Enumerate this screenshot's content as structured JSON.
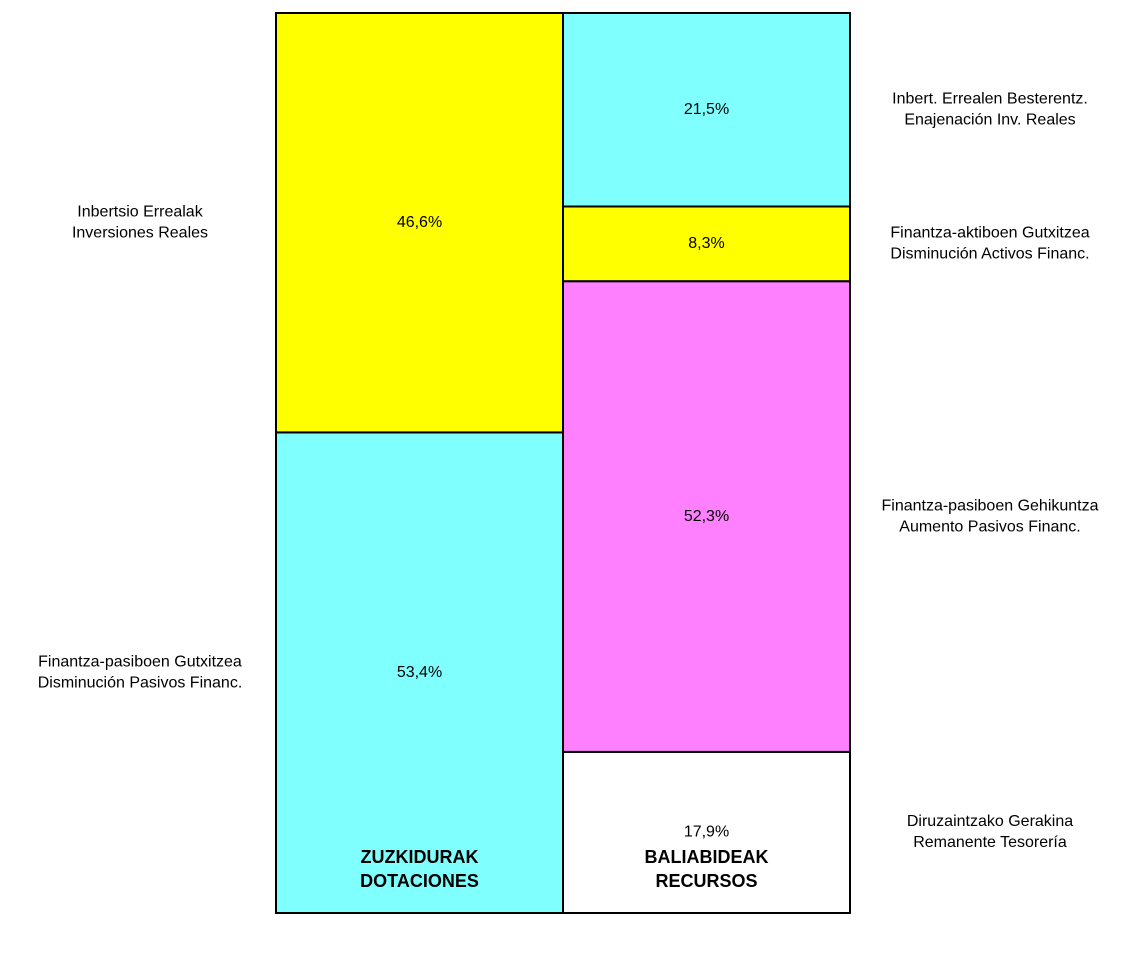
{
  "chart_data": {
    "type": "bar",
    "stacked": true,
    "categories": [
      [
        "ZUZKIDURAK",
        "DOTACIONES"
      ],
      [
        "BALIABIDEAK",
        "RECURSOS"
      ]
    ],
    "ylim": [
      0,
      100
    ],
    "series": [
      {
        "name": [
          "Finantza-pasiboen Gutxitzea",
          "Disminución Pasivos Financ."
        ],
        "color": "#80ffff",
        "values": [
          53.4,
          null
        ],
        "value_labels": [
          "53,4%",
          null
        ]
      },
      {
        "name": [
          "Inbertsio Errealak",
          "Inversiones Reales"
        ],
        "color": "#ffff00",
        "values": [
          46.6,
          null
        ],
        "value_labels": [
          "46,6%",
          null
        ]
      },
      {
        "name": [
          "Diruzaintzako Gerakina",
          "Remanente Tesorería"
        ],
        "color": "#ffffff",
        "values": [
          null,
          17.9
        ],
        "value_labels": [
          null,
          "17,9%"
        ]
      },
      {
        "name": [
          "Finantza-pasiboen Gehikuntza",
          "Aumento Pasivos Financ."
        ],
        "color": "#ff80ff",
        "values": [
          null,
          52.3
        ],
        "value_labels": [
          null,
          "52,3%"
        ]
      },
      {
        "name": [
          "Finantza-aktiboen Gutxitzea",
          "Disminución Activos Financ."
        ],
        "color": "#ffff00",
        "values": [
          null,
          8.3
        ],
        "value_labels": [
          null,
          "8,3%"
        ]
      },
      {
        "name": [
          "Inbert. Errealen Besterentz.",
          "Enajenación Inv. Reales"
        ],
        "color": "#80ffff",
        "values": [
          null,
          21.5
        ],
        "value_labels": [
          null,
          "21,5%"
        ]
      }
    ]
  }
}
